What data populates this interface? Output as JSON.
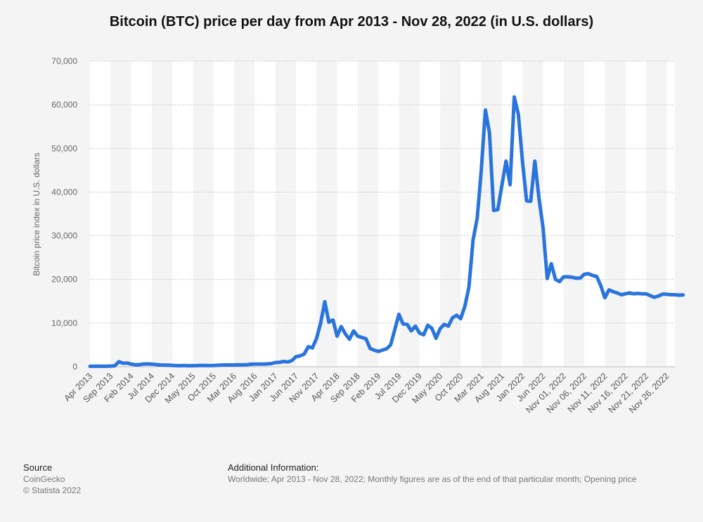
{
  "chart_data": {
    "type": "line",
    "title": "Bitcoin (BTC) price per day from Apr 2013 - Nov 28, 2022 (in U.S. dollars)",
    "xlabel": "",
    "ylabel": "Bitcoin price index in U.S. dollars",
    "ylim": [
      0,
      70000
    ],
    "yticks": [
      0,
      10000,
      20000,
      30000,
      40000,
      50000,
      60000,
      70000
    ],
    "ytick_labels": [
      "0",
      "10,000",
      "20,000",
      "30,000",
      "40,000",
      "50,000",
      "60,000",
      "70,000"
    ],
    "grid": true,
    "line_color": "#2a74de",
    "xtick_labels": [
      "Apr 2013",
      "Sep 2013",
      "Feb 2014",
      "Jul 2014",
      "Dec 2014",
      "May 2015",
      "Oct 2015",
      "Mar 2016",
      "Aug 2016",
      "Jan 2017",
      "Jun 2017",
      "Nov 2017",
      "Apr 2018",
      "Sep 2018",
      "Feb 2019",
      "Jul 2019",
      "Dec 2019",
      "May 2020",
      "Oct 2020",
      "Mar 2021",
      "Aug 2021",
      "Jan 2022",
      "Jun 2022",
      "Nov 01, 2022",
      "Nov 06, 2022",
      "Nov 11, 2022",
      "Nov 16, 2022",
      "Nov 21, 2022",
      "Nov 26, 2022"
    ],
    "xtick_index": [
      0,
      5,
      10,
      15,
      20,
      25,
      30,
      35,
      40,
      45,
      50,
      55,
      60,
      65,
      70,
      75,
      80,
      85,
      90,
      95,
      100,
      105,
      110,
      115,
      120,
      125,
      130,
      135,
      140
    ],
    "n_points": 143,
    "values": [
      100,
      130,
      120,
      95,
      110,
      140,
      200,
      1150,
      800,
      850,
      600,
      450,
      480,
      620,
      640,
      600,
      500,
      400,
      380,
      350,
      310,
      260,
      240,
      270,
      230,
      240,
      250,
      300,
      280,
      260,
      270,
      330,
      380,
      420,
      400,
      410,
      450,
      420,
      440,
      570,
      600,
      590,
      610,
      640,
      700,
      970,
      1000,
      1200,
      1100,
      1400,
      2300,
      2500,
      2900,
      4600,
      4300,
      6500,
      10000,
      14900,
      10200,
      10700,
      7000,
      9200,
      7500,
      6300,
      8200,
      7000,
      6700,
      6400,
      4200,
      3800,
      3500,
      3800,
      4100,
      5000,
      8500,
      12000,
      9800,
      9700,
      8200,
      9300,
      7700,
      7300,
      9500,
      8800,
      6500,
      8700,
      9700,
      9300,
      11200,
      11800,
      11000,
      13800,
      18200,
      29000,
      34000,
      45000,
      58800,
      53500,
      35800,
      36000,
      41500,
      47100,
      41700,
      61800,
      57800,
      47000,
      38000,
      37900,
      47100,
      38700,
      31800,
      20200,
      23600,
      20000,
      19500,
      20600,
      20600,
      20500,
      20300,
      20300,
      21200,
      21300,
      20900,
      20700,
      18600,
      15800,
      17600,
      17200,
      16900,
      16500,
      16700,
      16900,
      16700,
      16800,
      16700,
      16700,
      16300,
      15900,
      16200,
      16600,
      16600,
      16500,
      16500,
      16400,
      16450
    ]
  },
  "footer": {
    "source_heading": "Source",
    "source_name": "CoinGecko",
    "copyright": "© Statista 2022",
    "info_heading": "Additional Information:",
    "info_text": "Worldwide; Apr 2013 - Nov 28, 2022; Monthly figures are as of the end of that particular month; Opening price"
  }
}
